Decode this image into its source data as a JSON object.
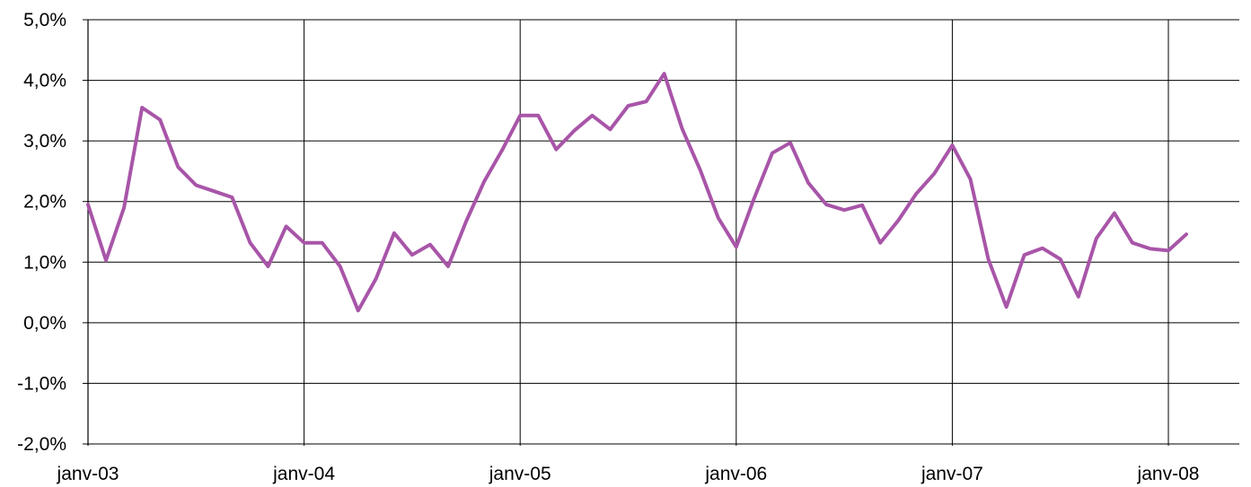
{
  "chart_data": {
    "type": "line",
    "title": "",
    "xlabel": "",
    "ylabel": "",
    "ylim": [
      -2.0,
      5.0
    ],
    "y_ticks": [
      "5,0%",
      "4,0%",
      "3,0%",
      "2,0%",
      "1,0%",
      "0,0%",
      "-1,0%",
      "-2,0%"
    ],
    "y_tick_values": [
      5,
      4,
      3,
      2,
      1,
      0,
      -1,
      -2
    ],
    "x_ticks": [
      "janv-03",
      "janv-04",
      "janv-05",
      "janv-06",
      "janv-07",
      "janv-08"
    ],
    "x_tick_dates": [
      "2003-01",
      "2004-01",
      "2005-01",
      "2006-01",
      "2007-01",
      "2008-01"
    ],
    "xlim": [
      "2003-01",
      "2008-03"
    ],
    "grid": true,
    "series": [
      {
        "color": "#a855a8",
        "x": [
          "2003-01",
          "2003-02",
          "2003-03",
          "2003-04",
          "2003-05",
          "2003-06",
          "2003-07",
          "2003-08",
          "2003-09",
          "2003-10",
          "2003-11",
          "2003-12",
          "2004-01",
          "2004-02",
          "2004-03",
          "2004-04",
          "2004-05",
          "2004-06",
          "2004-07",
          "2004-08",
          "2004-09",
          "2004-10",
          "2004-11",
          "2004-12",
          "2005-01",
          "2005-02",
          "2005-03",
          "2005-04",
          "2005-05",
          "2005-06",
          "2005-07",
          "2005-08",
          "2005-09",
          "2005-10",
          "2005-11",
          "2005-12",
          "2006-01",
          "2006-02",
          "2006-03",
          "2006-04",
          "2006-05",
          "2006-06",
          "2006-07",
          "2006-08",
          "2006-09",
          "2006-10",
          "2006-11",
          "2006-12",
          "2007-01",
          "2007-02",
          "2007-03",
          "2007-04",
          "2007-05",
          "2007-06",
          "2007-07",
          "2007-08",
          "2007-09",
          "2007-10",
          "2007-11",
          "2007-12",
          "2008-01",
          "2008-02"
        ],
        "values": [
          1.95,
          1.03,
          1.9,
          3.55,
          3.35,
          2.57,
          2.27,
          2.17,
          2.07,
          1.32,
          0.93,
          1.59,
          1.32,
          1.32,
          0.93,
          0.2,
          0.73,
          1.48,
          1.12,
          1.29,
          0.93,
          1.67,
          2.33,
          2.85,
          3.42,
          3.42,
          2.86,
          3.17,
          3.42,
          3.19,
          3.58,
          3.65,
          4.11,
          3.2,
          2.52,
          1.73,
          1.25,
          2.06,
          2.8,
          2.97,
          2.31,
          1.95,
          1.86,
          1.94,
          1.32,
          1.69,
          2.13,
          2.46,
          2.93,
          2.37,
          1.05,
          0.26,
          1.12,
          1.23,
          1.05,
          0.43,
          1.39,
          1.81,
          1.32,
          1.22,
          1.19,
          1.46
        ]
      }
    ]
  }
}
